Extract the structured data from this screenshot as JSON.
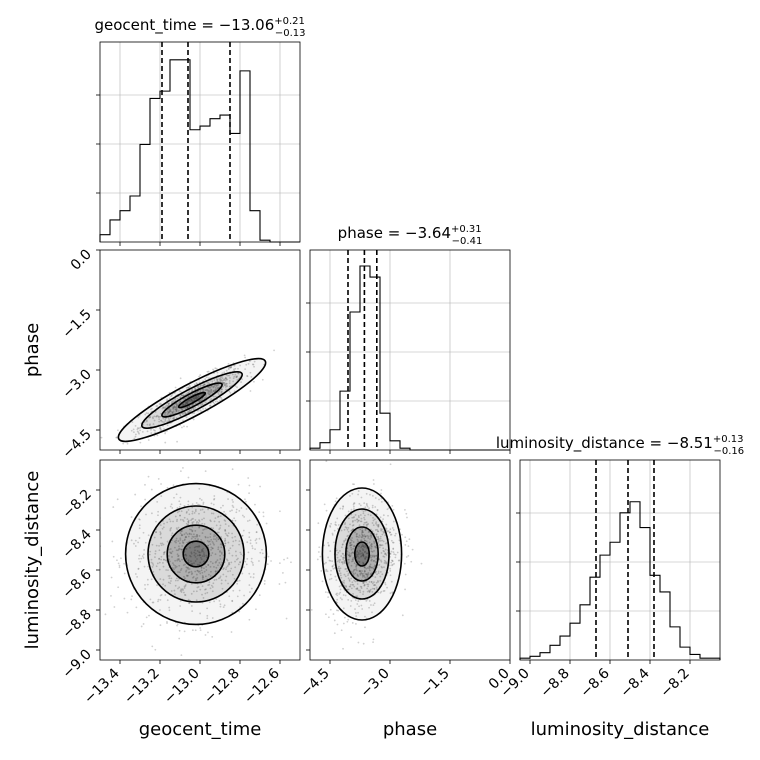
{
  "chart_data": {
    "type": "corner",
    "parameters": [
      "geocent_time",
      "phase",
      "luminosity_distance"
    ],
    "titles": [
      {
        "param": "geocent_time",
        "prefix": "geocent_time = ",
        "value": "−13.06",
        "plus": "+0.21",
        "minus": "−0.13"
      },
      {
        "param": "phase",
        "prefix": "phase = ",
        "value": "−3.64",
        "plus": "+0.31",
        "minus": "−0.41"
      },
      {
        "param": "luminosity_distance",
        "prefix": "luminosity_distance = ",
        "value": "−8.51",
        "plus": "+0.13",
        "minus": "−0.16"
      }
    ],
    "axis_labels": {
      "x": [
        "geocent_time",
        "phase",
        "luminosity_distance"
      ],
      "y": [
        "phase",
        "luminosity_distance"
      ]
    },
    "ranges": {
      "geocent_time": [
        -13.5,
        -12.5
      ],
      "phase": [
        -5.0,
        0.0
      ],
      "luminosity_distance": [
        -9.05,
        -8.05
      ]
    },
    "ticks": {
      "geocent_time": {
        "values": [
          -13.4,
          -13.2,
          -13.0,
          -12.8,
          -12.6
        ],
        "labels": [
          "−13.4",
          "−13.2",
          "−13.0",
          "−12.8",
          "−12.6"
        ]
      },
      "phase": {
        "values": [
          -4.5,
          -3.0,
          -1.5,
          0.0
        ],
        "labels": [
          "−4.5",
          "−3.0",
          "−1.5",
          "0.0"
        ]
      },
      "luminosity_distance": {
        "values": [
          -9.0,
          -8.8,
          -8.6,
          -8.4,
          -8.2
        ],
        "labels": [
          "−9.0",
          "−8.8",
          "−8.6",
          "−8.4",
          "−8.2"
        ]
      }
    },
    "quantiles": {
      "geocent_time": [
        -13.19,
        -13.06,
        -12.85
      ],
      "phase": [
        -4.05,
        -3.64,
        -3.33
      ],
      "luminosity_distance": [
        -8.67,
        -8.51,
        -8.38
      ]
    },
    "histograms": {
      "geocent_time": {
        "edges_range": [
          -13.5,
          -12.5
        ],
        "counts": [
          0.04,
          0.12,
          0.17,
          0.25,
          0.53,
          0.78,
          0.82,
          0.99,
          0.99,
          0.61,
          0.63,
          0.67,
          0.69,
          0.59,
          0.93,
          0.17,
          0.01,
          0,
          0,
          0
        ]
      },
      "phase": {
        "edges_range": [
          -5.0,
          0.0
        ],
        "counts": [
          0.01,
          0.04,
          0.11,
          0.32,
          0.75,
          1.0,
          0.94,
          0.2,
          0.05,
          0.01,
          0,
          0,
          0,
          0,
          0,
          0,
          0,
          0,
          0,
          0
        ]
      },
      "luminosity_distance": {
        "edges_range": [
          -9.05,
          -8.05
        ],
        "counts": [
          0.01,
          0.02,
          0.04,
          0.08,
          0.13,
          0.2,
          0.3,
          0.45,
          0.57,
          0.64,
          0.8,
          0.86,
          0.72,
          0.46,
          0.37,
          0.18,
          0.07,
          0.03,
          0.01,
          0.01
        ]
      }
    },
    "grid": true,
    "colors": {
      "line": "#000000",
      "grid": "#b0b0b0",
      "scatter": "#777777"
    }
  }
}
